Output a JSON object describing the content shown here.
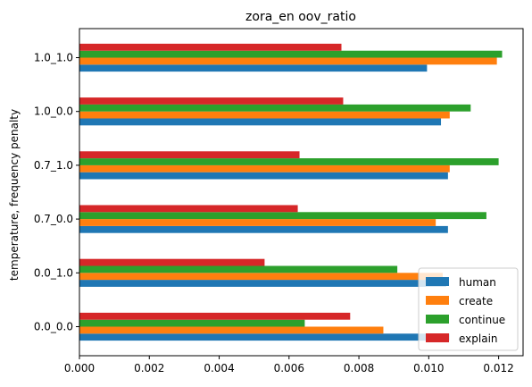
{
  "chart_data": {
    "type": "bar",
    "orientation": "horizontal",
    "title": "zora_en oov_ratio",
    "xlabel": "",
    "ylabel": "temperature, frequency penalty",
    "categories": [
      "0.0_0.0",
      "0.0_1.0",
      "0.7_0.0",
      "0.7_1.0",
      "1.0_0.0",
      "1.0_1.0"
    ],
    "xlim": [
      0,
      0.0127
    ],
    "xticks": [
      "0.000",
      "0.002",
      "0.004",
      "0.006",
      "0.008",
      "0.010",
      "0.012"
    ],
    "xtick_values": [
      0,
      0.002,
      0.004,
      0.006,
      0.008,
      0.01,
      0.012
    ],
    "grid": false,
    "legend_position": "bottom-right",
    "series": [
      {
        "name": "human",
        "color": "#1f77b4",
        "values": [
          0.0106,
          0.0105,
          0.01055,
          0.01055,
          0.01035,
          0.00995
        ]
      },
      {
        "name": "create",
        "color": "#ff7f0e",
        "values": [
          0.0087,
          0.0104,
          0.0102,
          0.0106,
          0.0106,
          0.01195
        ]
      },
      {
        "name": "continue",
        "color": "#2ca02c",
        "values": [
          0.00645,
          0.0091,
          0.01165,
          0.012,
          0.0112,
          0.0121
        ]
      },
      {
        "name": "explain",
        "color": "#d62728",
        "values": [
          0.00775,
          0.0053,
          0.00625,
          0.0063,
          0.00755,
          0.0075
        ]
      }
    ]
  }
}
